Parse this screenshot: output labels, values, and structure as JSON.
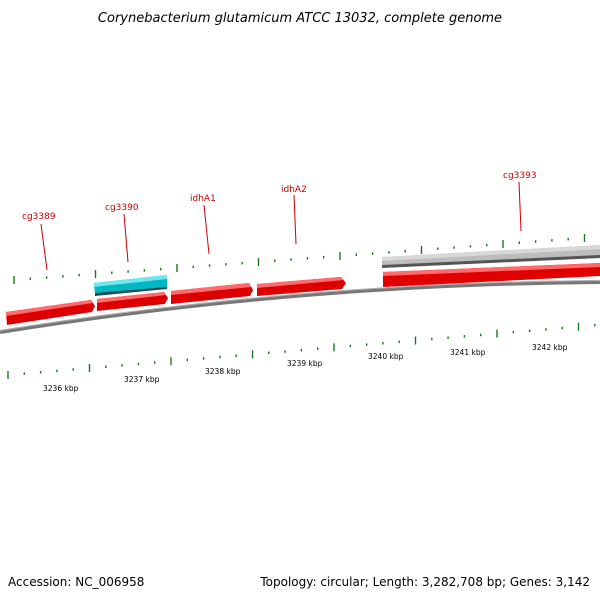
{
  "title": "Corynebacterium glutamicum ATCC 13032, complete genome",
  "footer": {
    "accession": "Accession: NC_006958",
    "summary": "Topology: circular; Length: 3,282,708 bp; Genes: 3,142"
  },
  "colors": {
    "forward_gene": "#ee0000",
    "reverse_gene": "#00c8d2",
    "backbone": "#777777",
    "reverse_region": "#bbbbbb",
    "ticks": "#1a7a1a",
    "gene_label": "#cc0000"
  },
  "genes": [
    {
      "name": "cg3389",
      "strand": "forward"
    },
    {
      "name": "cg3390",
      "strand": "reverse"
    },
    {
      "name": "idhA1",
      "strand": "forward"
    },
    {
      "name": "idhA2",
      "strand": "forward"
    },
    {
      "name": "cg3393",
      "strand": "forward"
    }
  ],
  "scale": {
    "labels": [
      "3236 kbp",
      "3237 kbp",
      "3238 kbp",
      "3239 kbp",
      "3240 kbp",
      "3241 kbp",
      "3242 kbp"
    ]
  }
}
